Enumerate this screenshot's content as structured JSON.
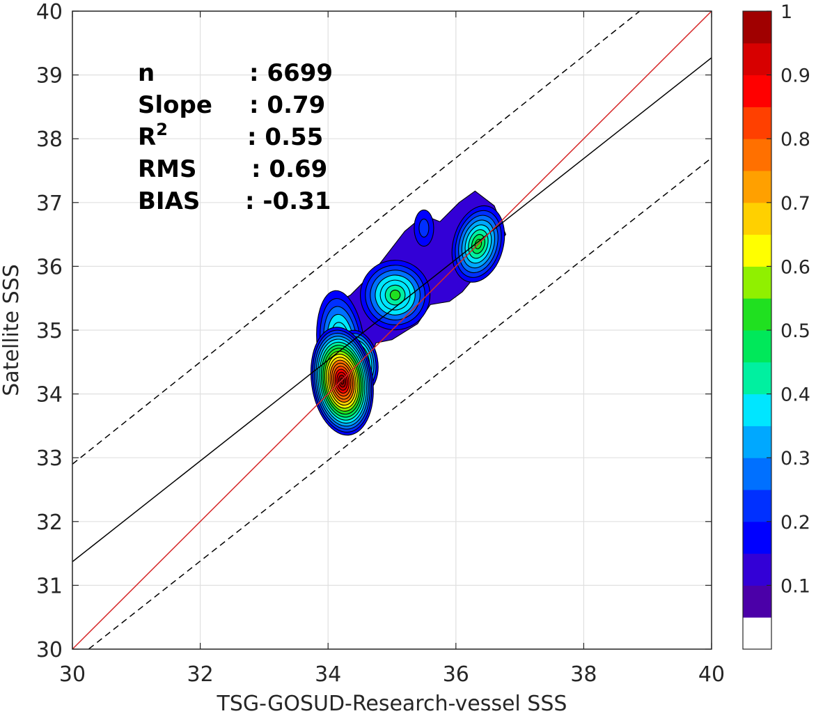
{
  "chart_data": {
    "type": "contour",
    "xlabel": "TSG-GOSUD-Research-vessel SSS",
    "ylabel": "Satellite SSS",
    "xlim": [
      30,
      40
    ],
    "ylim": [
      30,
      40
    ],
    "xticks": [
      "30",
      "32",
      "34",
      "36",
      "38",
      "40"
    ],
    "yticks": [
      "30",
      "31",
      "32",
      "33",
      "34",
      "35",
      "36",
      "37",
      "38",
      "39",
      "40"
    ],
    "grid": true,
    "stats": [
      {
        "label": "n",
        "value": ": 6699"
      },
      {
        "label": "Slope",
        "value": ": 0.79"
      },
      {
        "label": "R",
        "sup": "2",
        "value": ": 0.55"
      },
      {
        "label": "RMS",
        "value": ": 0.69"
      },
      {
        "label": "BIAS",
        "value": ": -0.31"
      }
    ],
    "lines": {
      "identity": {
        "x": [
          30,
          40
        ],
        "y": [
          30,
          40
        ],
        "color": "#d62728"
      },
      "regression": {
        "x": [
          30,
          40
        ],
        "y": [
          31.37,
          39.27
        ],
        "color": "#000000"
      },
      "upper_bound": {
        "x": [
          30,
          40
        ],
        "y": [
          32.9,
          40.9
        ],
        "color": "#000000",
        "style": "dashed"
      },
      "lower_bound": {
        "x": [
          30,
          40
        ],
        "y": [
          29.8,
          37.7
        ],
        "color": "#000000",
        "style": "dashed"
      }
    },
    "density_peaks": [
      {
        "x": 34.22,
        "y": 34.2,
        "level": 1.0
      },
      {
        "x": 34.45,
        "y": 34.5,
        "level": 0.62
      },
      {
        "x": 34.2,
        "y": 34.75,
        "level": 0.45
      },
      {
        "x": 35.05,
        "y": 35.55,
        "level": 0.45
      },
      {
        "x": 36.35,
        "y": 36.35,
        "level": 0.5
      },
      {
        "x": 35.5,
        "y": 36.6,
        "level": 0.18
      }
    ],
    "colorbar": {
      "range": [
        0,
        1
      ],
      "ticks": [
        "0.1",
        "0.2",
        "0.3",
        "0.4",
        "0.5",
        "0.6",
        "0.7",
        "0.8",
        "0.9",
        "1"
      ],
      "colors": [
        "#ffffff",
        "#4b00a8",
        "#3300d6",
        "#0000ff",
        "#0030ff",
        "#0070ff",
        "#00a8ff",
        "#00e6ff",
        "#00f0a0",
        "#00e85a",
        "#20e020",
        "#90f000",
        "#ffff00",
        "#ffd000",
        "#ffa000",
        "#ff7000",
        "#ff4000",
        "#ff0000",
        "#d70000",
        "#a00000",
        "#800000"
      ]
    }
  }
}
